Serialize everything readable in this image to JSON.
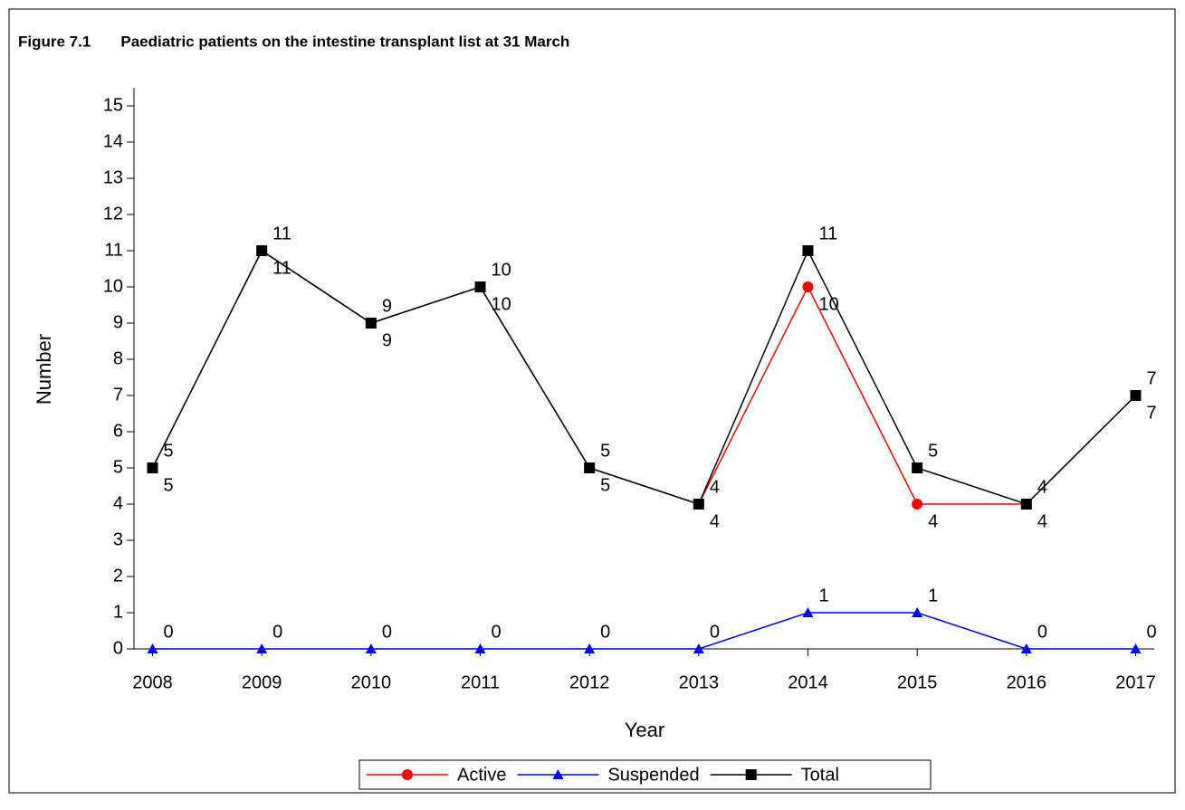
{
  "chart_data": {
    "type": "line",
    "title": "Figure 7.1       Paediatric patients on the intestine transplant list at 31 March",
    "xlabel": "Year",
    "ylabel": "Number",
    "x": [
      2008,
      2009,
      2010,
      2011,
      2012,
      2013,
      2014,
      2015,
      2016,
      2017
    ],
    "xlim": [
      2007.83,
      2017.17
    ],
    "xticks": [
      2008,
      2009,
      2010,
      2011,
      2012,
      2013,
      2014,
      2015,
      2016,
      2017
    ],
    "ylim": [
      0,
      15.5
    ],
    "yticks": [
      0,
      1,
      2,
      3,
      4,
      5,
      6,
      7,
      8,
      9,
      10,
      11,
      12,
      13,
      14,
      15
    ],
    "series": [
      {
        "name": "Active",
        "color": "#ff0000",
        "marker": "circle",
        "values": [
          5,
          11,
          9,
          10,
          5,
          4,
          10,
          4,
          4,
          7
        ]
      },
      {
        "name": "Suspended",
        "color": "#0000ff",
        "marker": "triangle",
        "values": [
          0,
          0,
          0,
          0,
          0,
          0,
          1,
          1,
          0,
          0
        ]
      },
      {
        "name": "Total",
        "color": "#000000",
        "marker": "square",
        "values": [
          5,
          11,
          9,
          10,
          5,
          4,
          11,
          5,
          4,
          7
        ]
      }
    ],
    "legend": "bottom"
  }
}
